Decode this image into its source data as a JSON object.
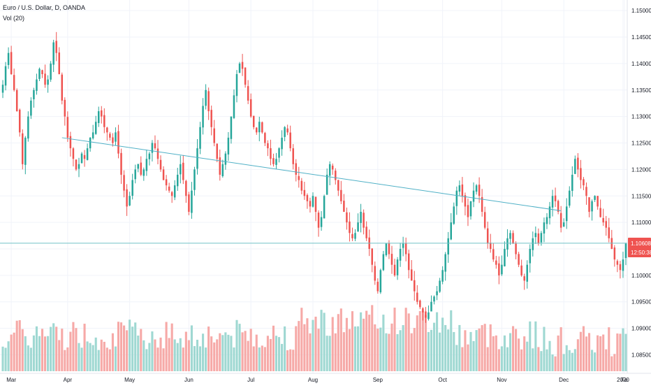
{
  "legend": {
    "symbol": "Euro / U.S. Dollar, D, OANDA",
    "volume": "Vol (20)"
  },
  "price_label": {
    "value": "1.10608",
    "countdown": "12:50:38"
  },
  "colors": {
    "up": "#26a69a",
    "down": "#ef5350",
    "vol_up": "#9fd8d2",
    "vol_down": "#f6a9a7",
    "trendline": "#4fb0c6",
    "hline": "#72c1c6",
    "grid": "#f0f3fa",
    "axis_text": "#131722"
  },
  "chart_data": {
    "type": "candlestick",
    "y_ticks": [
      "1.15000",
      "1.14500",
      "1.14000",
      "1.13500",
      "1.13000",
      "1.12500",
      "1.12000",
      "1.11500",
      "1.11000",
      "1.10500",
      "1.10000",
      "1.09500",
      "1.09000",
      "1.08500"
    ],
    "x_ticks": [
      "Mar",
      "Apr",
      "May",
      "Jun",
      "Jul",
      "Aug",
      "Sep",
      "Oct",
      "Nov",
      "Dec",
      "2020",
      "Fe"
    ],
    "ylim": [
      1.0815,
      1.152
    ],
    "trendline": {
      "from": {
        "date": "Apr 04",
        "price": 1.126
      },
      "to": {
        "date": "Dec 05",
        "price": 1.1122
      }
    },
    "horizontal_line": 1.10608,
    "closes": [
      1.136,
      1.1395,
      1.142,
      1.138,
      1.135,
      1.131,
      1.127,
      1.121,
      1.126,
      1.13,
      1.133,
      1.135,
      1.137,
      1.139,
      1.138,
      1.136,
      1.137,
      1.14,
      1.144,
      1.142,
      1.138,
      1.133,
      1.13,
      1.126,
      1.124,
      1.122,
      1.12,
      1.121,
      1.123,
      1.122,
      1.124,
      1.126,
      1.127,
      1.129,
      1.131,
      1.13,
      1.128,
      1.127,
      1.126,
      1.125,
      1.127,
      1.123,
      1.119,
      1.116,
      1.113,
      1.115,
      1.118,
      1.12,
      1.121,
      1.119,
      1.12,
      1.122,
      1.123,
      1.125,
      1.124,
      1.122,
      1.12,
      1.118,
      1.117,
      1.116,
      1.115,
      1.117,
      1.119,
      1.121,
      1.118,
      1.115,
      1.112,
      1.116,
      1.12,
      1.124,
      1.128,
      1.132,
      1.135,
      1.131,
      1.128,
      1.125,
      1.122,
      1.119,
      1.121,
      1.123,
      1.126,
      1.13,
      1.134,
      1.138,
      1.14,
      1.139,
      1.136,
      1.133,
      1.13,
      1.128,
      1.127,
      1.129,
      1.127,
      1.125,
      1.124,
      1.122,
      1.121,
      1.122,
      1.124,
      1.126,
      1.128,
      1.127,
      1.124,
      1.121,
      1.119,
      1.118,
      1.116,
      1.115,
      1.114,
      1.113,
      1.115,
      1.112,
      1.109,
      1.111,
      1.115,
      1.119,
      1.121,
      1.12,
      1.118,
      1.116,
      1.114,
      1.112,
      1.11,
      1.108,
      1.107,
      1.108,
      1.11,
      1.112,
      1.109,
      1.107,
      1.105,
      1.102,
      1.099,
      1.097,
      1.101,
      1.104,
      1.106,
      1.104,
      1.102,
      1.1,
      1.103,
      1.105,
      1.106,
      1.104,
      1.101,
      1.099,
      1.097,
      1.095,
      1.094,
      1.093,
      1.092,
      1.093,
      1.095,
      1.096,
      1.097,
      1.099,
      1.101,
      1.104,
      1.107,
      1.11,
      1.113,
      1.116,
      1.117,
      1.115,
      1.113,
      1.111,
      1.114,
      1.116,
      1.117,
      1.115,
      1.112,
      1.109,
      1.106,
      1.105,
      1.103,
      1.102,
      1.1,
      1.102,
      1.105,
      1.107,
      1.108,
      1.106,
      1.104,
      1.102,
      1.1,
      1.099,
      1.102,
      1.105,
      1.107,
      1.108,
      1.106,
      1.108,
      1.11,
      1.111,
      1.113,
      1.115,
      1.114,
      1.112,
      1.109,
      1.11,
      1.113,
      1.116,
      1.119,
      1.122,
      1.12,
      1.118,
      1.117,
      1.115,
      1.112,
      1.114,
      1.115,
      1.113,
      1.111,
      1.11,
      1.109,
      1.107,
      1.105,
      1.103,
      1.102,
      1.101,
      1.103,
      1.106
    ]
  }
}
